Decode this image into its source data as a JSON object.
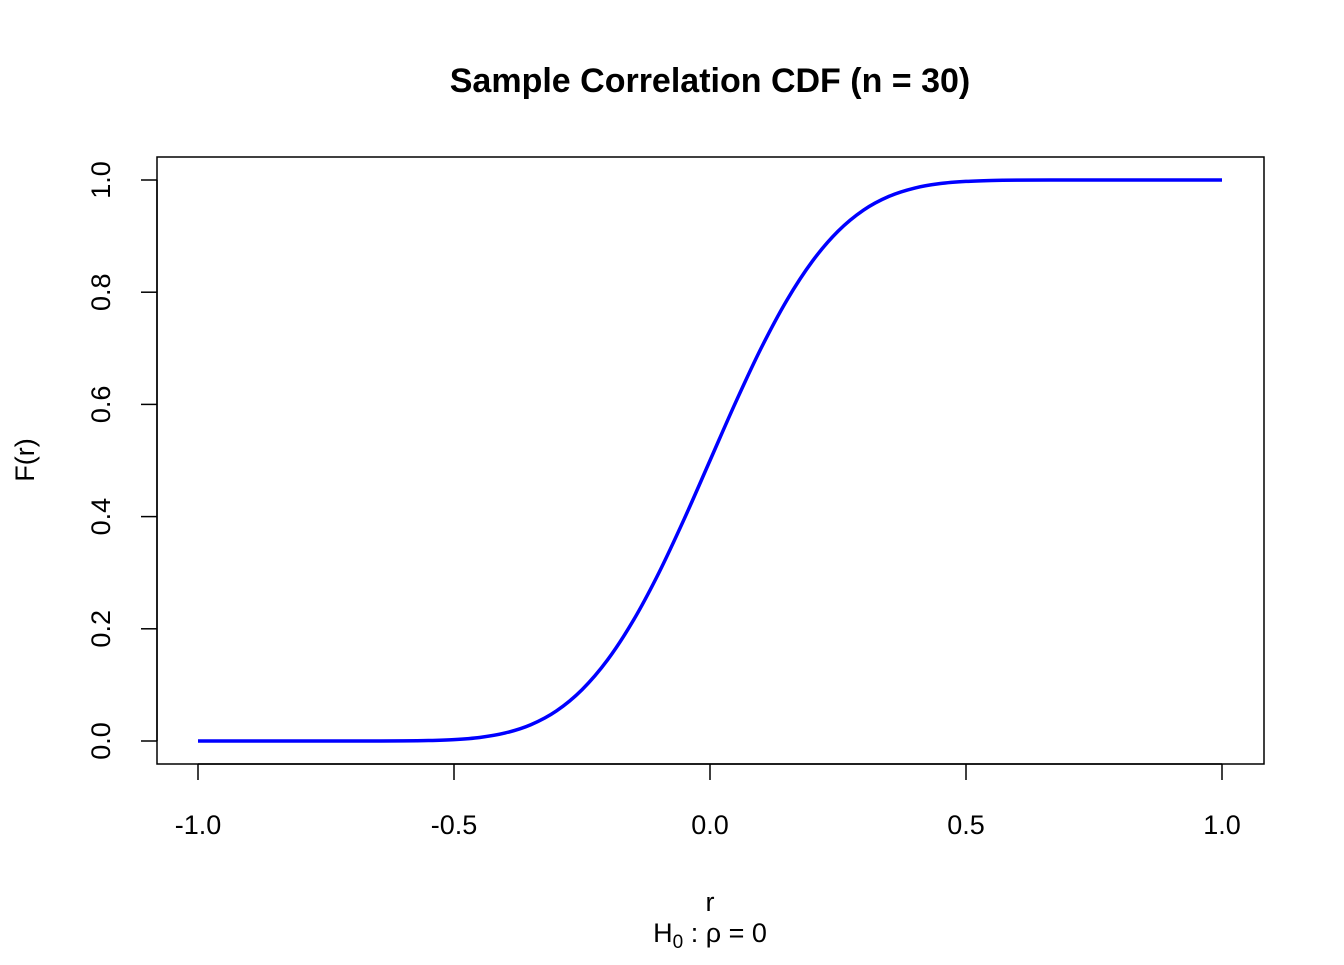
{
  "chart_data": {
    "type": "line",
    "title": "Sample Correlation CDF (n = 30)",
    "xlabel": "r",
    "subtitle": {
      "main": "H",
      "sub": "0",
      "rest": " : ρ = 0"
    },
    "ylabel": "F(r)",
    "xlim": [
      -1.0,
      1.0
    ],
    "ylim": [
      0.0,
      1.0
    ],
    "xticks": [
      -1.0,
      -0.5,
      0.0,
      0.5,
      1.0
    ],
    "xtick_labels": [
      "-1.0",
      "-0.5",
      "0.0",
      "0.5",
      "1.0"
    ],
    "yticks": [
      0.0,
      0.2,
      0.4,
      0.6,
      0.8,
      1.0
    ],
    "ytick_labels": [
      "0.0",
      "0.2",
      "0.4",
      "0.6",
      "0.8",
      "1.0"
    ],
    "grid": false,
    "series": [
      {
        "name": "F(r)",
        "color": "#0000ff",
        "x": [
          -1.0,
          -0.8,
          -0.7,
          -0.6,
          -0.55,
          -0.5,
          -0.45,
          -0.4,
          -0.35,
          -0.3,
          -0.25,
          -0.2,
          -0.15,
          -0.1,
          -0.05,
          0.0,
          0.05,
          0.1,
          0.15,
          0.2,
          0.25,
          0.3,
          0.35,
          0.4,
          0.45,
          0.5,
          0.55,
          0.6,
          0.7,
          0.8,
          1.0
        ],
        "y": [
          0.0,
          0.0,
          0.0,
          0.0002,
          0.0008,
          0.0025,
          0.0063,
          0.0143,
          0.029,
          0.0536,
          0.0914,
          0.1447,
          0.2145,
          0.2995,
          0.3965,
          0.5,
          0.6035,
          0.7005,
          0.7855,
          0.8553,
          0.9086,
          0.9464,
          0.971,
          0.9857,
          0.9937,
          0.9975,
          0.9992,
          0.9998,
          1.0,
          1.0,
          1.0
        ]
      }
    ]
  }
}
